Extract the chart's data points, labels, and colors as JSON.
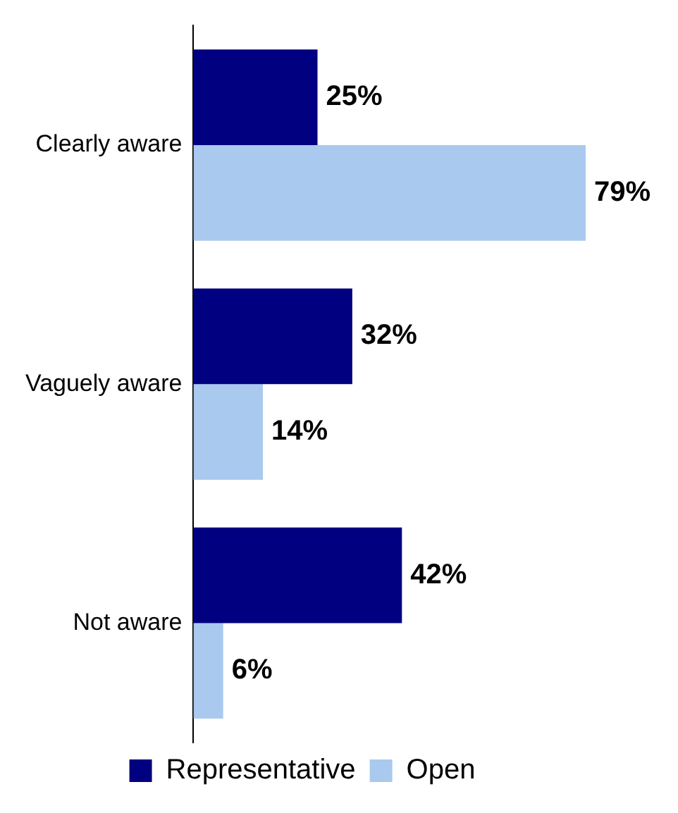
{
  "chart_data": {
    "type": "bar",
    "orientation": "horizontal",
    "categories": [
      "Clearly aware",
      "Vaguely aware",
      "Not aware"
    ],
    "series": [
      {
        "name": "Representative",
        "color": "#000080",
        "values": [
          25,
          32,
          42
        ],
        "value_labels": [
          "25%",
          "32%",
          "42%"
        ]
      },
      {
        "name": "Open",
        "color": "#a9c9ef",
        "values": [
          79,
          14,
          6
        ],
        "value_labels": [
          "79%",
          "14%",
          "6%"
        ]
      }
    ],
    "legend": "bottom"
  }
}
